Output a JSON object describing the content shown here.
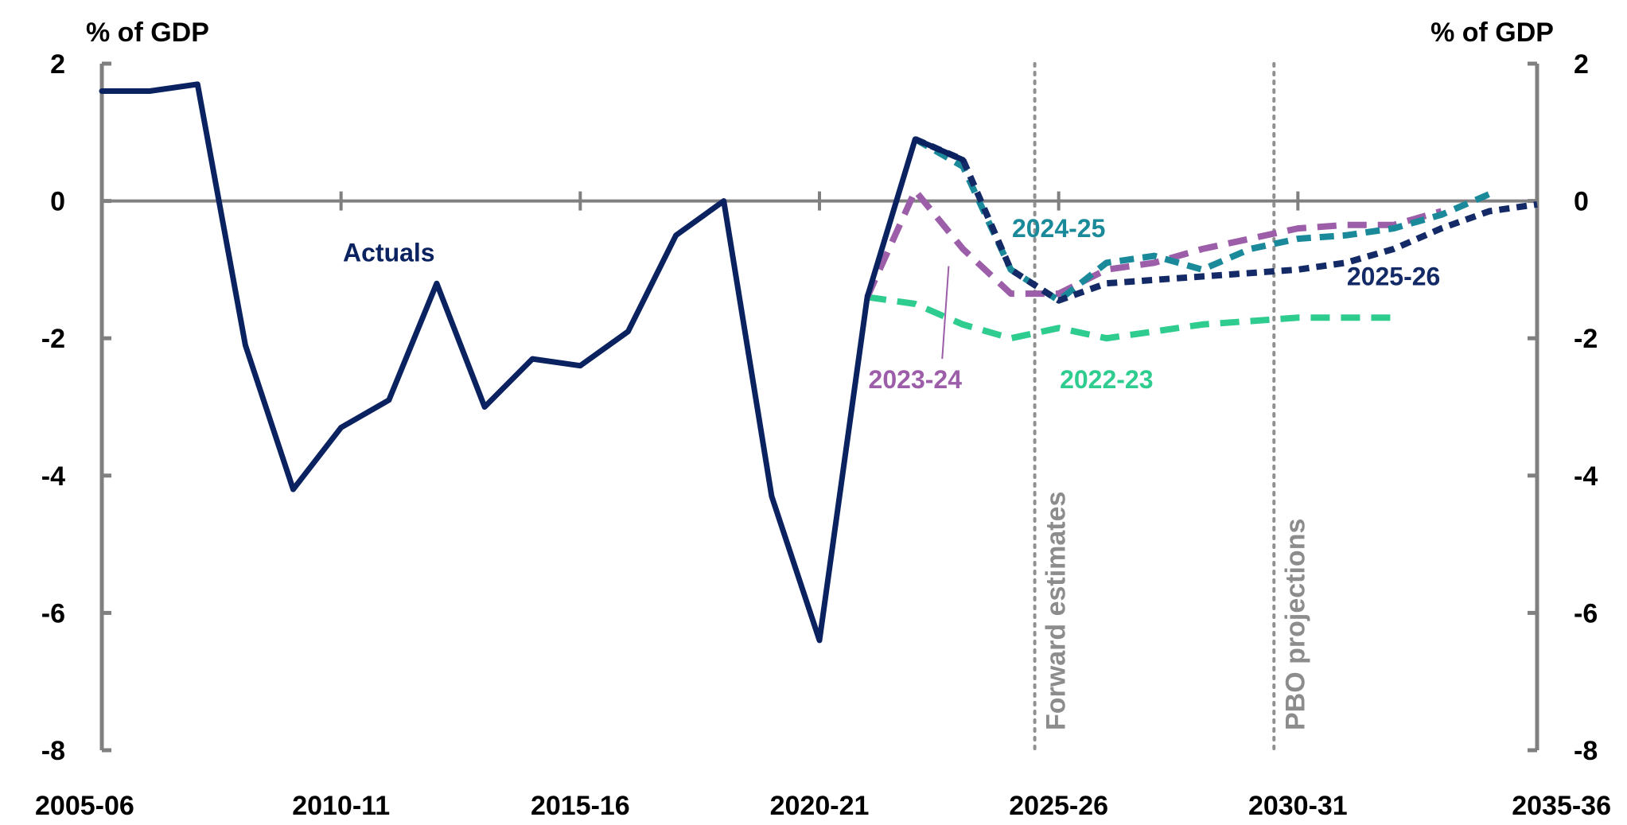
{
  "chart_data": {
    "type": "line",
    "y_unit_left": "% of GDP",
    "y_unit_right": "% of GDP",
    "ylim": [
      -8,
      2
    ],
    "y_ticks": [
      2,
      0,
      -2,
      -4,
      -6,
      -8
    ],
    "y_tick_labels": [
      "2",
      "0",
      "-2",
      "-4",
      "-6",
      "-8"
    ],
    "x_categories": [
      "2005-06",
      "2006-07",
      "2007-08",
      "2008-09",
      "2009-10",
      "2010-11",
      "2011-12",
      "2012-13",
      "2013-14",
      "2014-15",
      "2015-16",
      "2016-17",
      "2017-18",
      "2018-19",
      "2019-20",
      "2020-21",
      "2021-22",
      "2022-23",
      "2023-24",
      "2024-25",
      "2025-26",
      "2026-27",
      "2027-28",
      "2028-29",
      "2029-30",
      "2030-31",
      "2031-32",
      "2032-33",
      "2033-34",
      "2034-35",
      "2035-36"
    ],
    "x_tick_labels": [
      "2005-06",
      "2010-11",
      "2015-16",
      "2020-21",
      "2025-26",
      "2030-31",
      "2035-36"
    ],
    "grid": false,
    "colors": {
      "actuals": "#0b2260",
      "s2025_26": "#142a66",
      "s2024_25": "#1a8a9a",
      "s2023_24": "#9c5ea8",
      "s2022_23": "#2ecc8f",
      "axis": "#808080",
      "vline": "#909090",
      "vline_label": "#8c8c8c"
    },
    "vlines": [
      {
        "x": "2024-25",
        "offset": 0.5,
        "label": "Forward estimates"
      },
      {
        "x": "2029-30",
        "offset": 0.5,
        "label": "PBO projections"
      }
    ],
    "series": [
      {
        "name": "Actuals",
        "key": "actuals",
        "style": "solid",
        "start": "2005-06",
        "x": [
          "2005-06",
          "2006-07",
          "2007-08",
          "2008-09",
          "2009-10",
          "2010-11",
          "2011-12",
          "2012-13",
          "2013-14",
          "2014-15",
          "2015-16",
          "2016-17",
          "2017-18",
          "2018-19",
          "2019-20",
          "2020-21",
          "2021-22",
          "2022-23",
          "2023-24"
        ],
        "values": [
          1.6,
          1.6,
          1.7,
          -2.1,
          -4.2,
          -3.3,
          -2.9,
          -1.2,
          -3.0,
          -2.3,
          -2.4,
          -1.9,
          -0.5,
          0.0,
          -4.3,
          -6.4,
          -1.4,
          0.9,
          0.6
        ]
      },
      {
        "name": "2022-23",
        "key": "s2022_23",
        "style": "dash-long",
        "x": [
          "2021-22",
          "2022-23",
          "2023-24",
          "2024-25",
          "2025-26",
          "2026-27",
          "2027-28",
          "2028-29",
          "2029-30",
          "2030-31",
          "2031-32",
          "2032-33"
        ],
        "values": [
          -1.4,
          -1.5,
          -1.8,
          -2.0,
          -1.85,
          -2.0,
          -1.9,
          -1.8,
          -1.75,
          -1.7,
          -1.7,
          -1.7
        ]
      },
      {
        "name": "2023-24",
        "key": "s2023_24",
        "style": "dash-long",
        "x": [
          "2021-22",
          "2022-23",
          "2023-24",
          "2024-25",
          "2025-26",
          "2026-27",
          "2027-28",
          "2028-29",
          "2029-30",
          "2030-31",
          "2031-32",
          "2032-33",
          "2033-34"
        ],
        "values": [
          -1.4,
          0.15,
          -0.7,
          -1.35,
          -1.35,
          -1.0,
          -0.9,
          -0.7,
          -0.55,
          -0.4,
          -0.35,
          -0.35,
          -0.15
        ]
      },
      {
        "name": "2024-25",
        "key": "s2024_25",
        "style": "dash-med",
        "x": [
          "2022-23",
          "2023-24",
          "2024-25",
          "2025-26",
          "2026-27",
          "2027-28",
          "2028-29",
          "2029-30",
          "2030-31",
          "2031-32",
          "2032-33",
          "2033-34",
          "2034-35"
        ],
        "values": [
          0.9,
          0.5,
          -1.0,
          -1.45,
          -0.9,
          -0.8,
          -1.0,
          -0.7,
          -0.55,
          -0.5,
          -0.4,
          -0.2,
          0.1
        ]
      },
      {
        "name": "2025-26",
        "key": "s2025_26",
        "style": "dash-short",
        "x": [
          "2022-23",
          "2023-24",
          "2024-25",
          "2025-26",
          "2026-27",
          "2027-28",
          "2028-29",
          "2029-30",
          "2030-31",
          "2031-32",
          "2032-33",
          "2033-34",
          "2034-35",
          "2035-36"
        ],
        "values": [
          0.9,
          0.6,
          -1.0,
          -1.45,
          -1.2,
          -1.15,
          -1.1,
          -1.05,
          -1.0,
          -0.9,
          -0.7,
          -0.4,
          -0.15,
          -0.05
        ]
      }
    ],
    "annotations": [
      {
        "text": "Actuals",
        "key": "actuals",
        "x": "2011-12",
        "y": -0.75
      },
      {
        "text": "2024-25",
        "key": "s2024_25",
        "x": "2025-26",
        "y": -0.4
      },
      {
        "text": "2025-26",
        "key": "s2025_26",
        "x": "2032-33",
        "y": -1.1
      },
      {
        "text": "2023-24",
        "key": "s2023_24",
        "x": "2022-23",
        "y": -2.6
      },
      {
        "text": "2022-23",
        "key": "s2022_23",
        "x": "2026-27",
        "y": -2.6
      }
    ]
  }
}
